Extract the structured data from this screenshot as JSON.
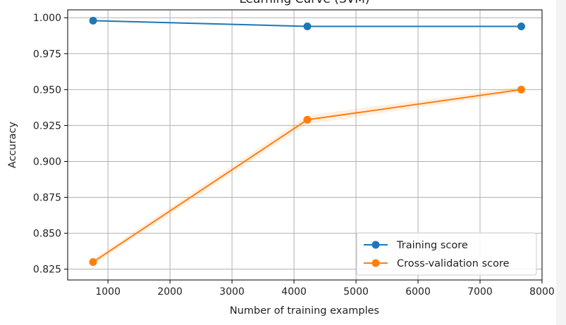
{
  "chart_data": {
    "type": "line",
    "title": "Learning Curve (SVM)",
    "xlabel": "Number of training examples",
    "ylabel": "Accuracy",
    "xlim": [
      350,
      8000
    ],
    "ylim": [
      0.8175,
      1.0055
    ],
    "xticks": [
      1000,
      2000,
      3000,
      4000,
      5000,
      6000,
      7000,
      8000
    ],
    "yticks": [
      0.825,
      0.85,
      0.875,
      0.9,
      0.925,
      0.95,
      0.975,
      1.0
    ],
    "xtick_labels": [
      "1000",
      "2000",
      "3000",
      "4000",
      "5000",
      "6000",
      "7000",
      "8000"
    ],
    "ytick_labels": [
      "0.825",
      "0.850",
      "0.875",
      "0.900",
      "0.925",
      "0.950",
      "0.975",
      "1.000"
    ],
    "grid": true,
    "legend_position": "lower-right",
    "x": [
      760,
      4215,
      7665
    ],
    "series": [
      {
        "name": "Training score",
        "color": "#1f77b4",
        "values": [
          0.998,
          0.994,
          0.994
        ],
        "band": [
          0.0005,
          0.0005,
          0.0005
        ]
      },
      {
        "name": "Cross-validation score",
        "color": "#ff7f0e",
        "values": [
          0.83,
          0.929,
          0.95
        ],
        "band": [
          0.002,
          0.003,
          0.002
        ]
      }
    ]
  }
}
